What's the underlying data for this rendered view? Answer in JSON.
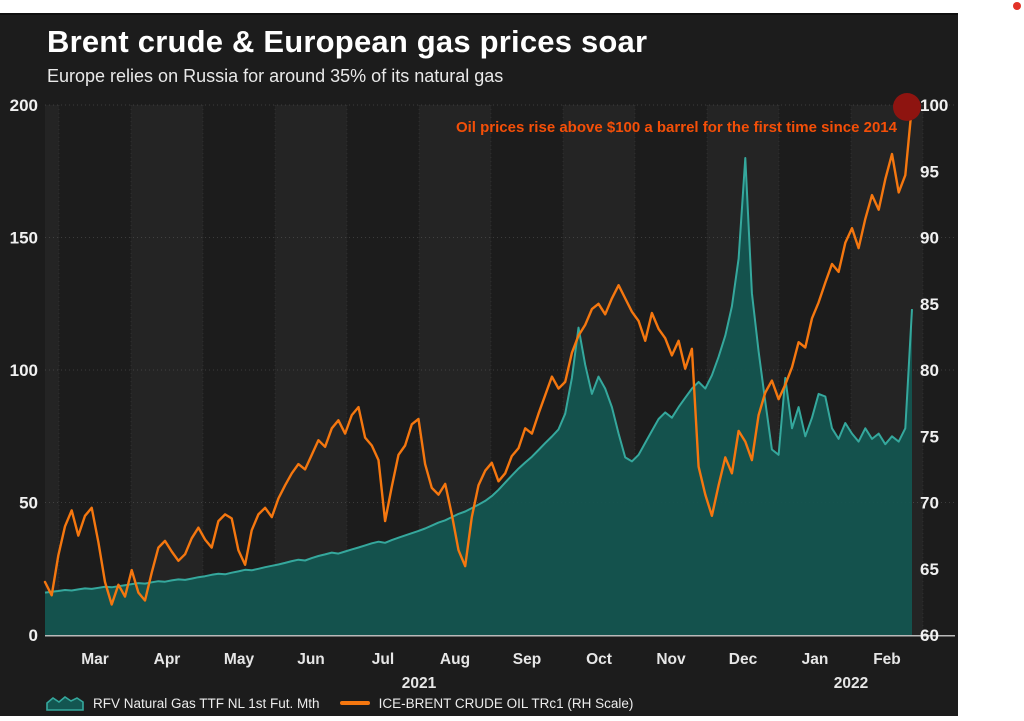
{
  "header": {
    "title": "Brent crude & European gas prices soar",
    "subtitle": "Europe relies on Russia for around 35% of its natural gas"
  },
  "annotation": {
    "text": "Oil prices rise above $100 a barrel for the first time since 2014",
    "color": "#f44f08"
  },
  "colors": {
    "panel_bg": "#1c1c1c",
    "band_alt": "#242424",
    "gas_fill": "#135651",
    "gas_line": "#35a89d",
    "oil_line": "#f5770f",
    "end_marker": "#8e1410",
    "corner_dot": "#e23227",
    "axis_text": "#f0f0f0",
    "grid": "#ffffff"
  },
  "chart_data": {
    "type": "area+line",
    "title": "Brent crude & European gas prices soar",
    "subtitle": "Europe relies on Russia for around 35% of its natural gas",
    "x_axis": {
      "month_labels": [
        "Mar",
        "Apr",
        "May",
        "Jun",
        "Jul",
        "Aug",
        "Sep",
        "Oct",
        "Nov",
        "Dec",
        "Jan",
        "Feb"
      ],
      "year_labels": [
        "2021",
        "2022"
      ],
      "range": "late Feb 2021 - late Feb 2022"
    },
    "left_axis": {
      "min": 0,
      "max": 200,
      "ticks": [
        200,
        150,
        100,
        50,
        0
      ],
      "series": "natural gas"
    },
    "right_axis": {
      "min": 60,
      "max": 100,
      "ticks": [
        100,
        95,
        90,
        85,
        80,
        75,
        70,
        65,
        60
      ],
      "series": "brent crude (RH Scale)"
    },
    "grid": "horizontal every 50 (left scale), vertical at month boundaries",
    "legend_position": "bottom-left",
    "end_marker": {
      "series": "ICE-BRENT CRUDE OIL TRc1",
      "value": 100,
      "color": "#8e1410"
    },
    "series": [
      {
        "name": "RFV Natural Gas TTF NL 1st Fut. Mth",
        "type": "area",
        "axis": "left",
        "color": "#35a89d",
        "fill": "#135651",
        "values": [
          16.0,
          16.3,
          16.6,
          17.0,
          16.8,
          17.2,
          17.6,
          17.4,
          17.8,
          18.2,
          18.0,
          18.4,
          18.8,
          19.2,
          19.6,
          19.4,
          19.9,
          20.3,
          20.1,
          20.6,
          21.0,
          20.8,
          21.3,
          21.8,
          22.2,
          22.7,
          23.1,
          22.9,
          23.5,
          24.0,
          24.6,
          24.4,
          25.0,
          25.6,
          26.1,
          26.6,
          27.2,
          27.9,
          28.4,
          28.1,
          29.0,
          29.8,
          30.4,
          31.1,
          30.7,
          31.5,
          32.3,
          33.0,
          33.8,
          34.6,
          35.2,
          34.8,
          35.8,
          36.7,
          37.6,
          38.4,
          39.3,
          40.2,
          41.3,
          42.4,
          43.3,
          44.5,
          45.7,
          46.6,
          47.9,
          49.2,
          50.6,
          52.4,
          54.8,
          57.5,
          60.2,
          62.8,
          65.1,
          67.3,
          69.8,
          72.4,
          74.9,
          77.6,
          83.5,
          97.0,
          116.0,
          102.0,
          91.0,
          97.5,
          93.0,
          86.0,
          76.0,
          67.0,
          65.5,
          68.0,
          72.5,
          77.0,
          81.5,
          84.0,
          82.0,
          86.0,
          89.5,
          93.0,
          95.5,
          93.0,
          98.0,
          105.0,
          113.0,
          124.0,
          142.0,
          180.0,
          129.0,
          107.0,
          88.0,
          70.0,
          68.0,
          97.0,
          78.0,
          86.0,
          75.0,
          82.0,
          91.0,
          90.0,
          78.0,
          74.0,
          80.0,
          76.0,
          73.0,
          78.0,
          74.0,
          76.0,
          72.0,
          75.0,
          73.0,
          78.0,
          123.0
        ]
      },
      {
        "name": "ICE-BRENT CRUDE OIL TRc1 (RH Scale)",
        "type": "line",
        "axis": "right",
        "color": "#f5770f",
        "values": [
          64.0,
          63.0,
          66.0,
          68.2,
          69.4,
          67.5,
          69.0,
          69.6,
          67.0,
          64.0,
          62.3,
          63.8,
          62.9,
          64.9,
          63.2,
          62.6,
          64.7,
          66.6,
          67.1,
          66.3,
          65.6,
          66.1,
          67.3,
          68.1,
          67.2,
          66.6,
          68.6,
          69.1,
          68.8,
          66.4,
          65.3,
          67.9,
          69.1,
          69.6,
          68.9,
          70.3,
          71.3,
          72.2,
          72.9,
          72.5,
          73.6,
          74.7,
          74.2,
          75.6,
          76.2,
          75.2,
          76.6,
          77.2,
          74.9,
          74.3,
          73.2,
          68.6,
          71.2,
          73.6,
          74.3,
          75.9,
          76.3,
          72.9,
          71.1,
          70.6,
          71.4,
          69.1,
          66.4,
          65.2,
          68.9,
          71.3,
          72.4,
          73.0,
          71.6,
          72.2,
          73.5,
          74.1,
          75.6,
          75.2,
          76.7,
          78.1,
          79.5,
          78.6,
          79.1,
          81.3,
          82.6,
          83.4,
          84.6,
          85.0,
          84.2,
          85.4,
          86.4,
          85.4,
          84.4,
          83.7,
          82.2,
          84.3,
          83.1,
          82.4,
          81.1,
          82.2,
          80.1,
          81.6,
          72.7,
          70.6,
          69.0,
          71.3,
          73.4,
          72.2,
          75.4,
          74.6,
          73.2,
          76.6,
          78.3,
          79.2,
          77.8,
          78.9,
          80.2,
          82.1,
          81.7,
          83.9,
          85.1,
          86.6,
          88.0,
          87.4,
          89.6,
          90.7,
          89.2,
          91.4,
          93.2,
          92.1,
          94.4,
          96.3,
          93.4,
          94.7,
          100.0
        ]
      }
    ]
  }
}
